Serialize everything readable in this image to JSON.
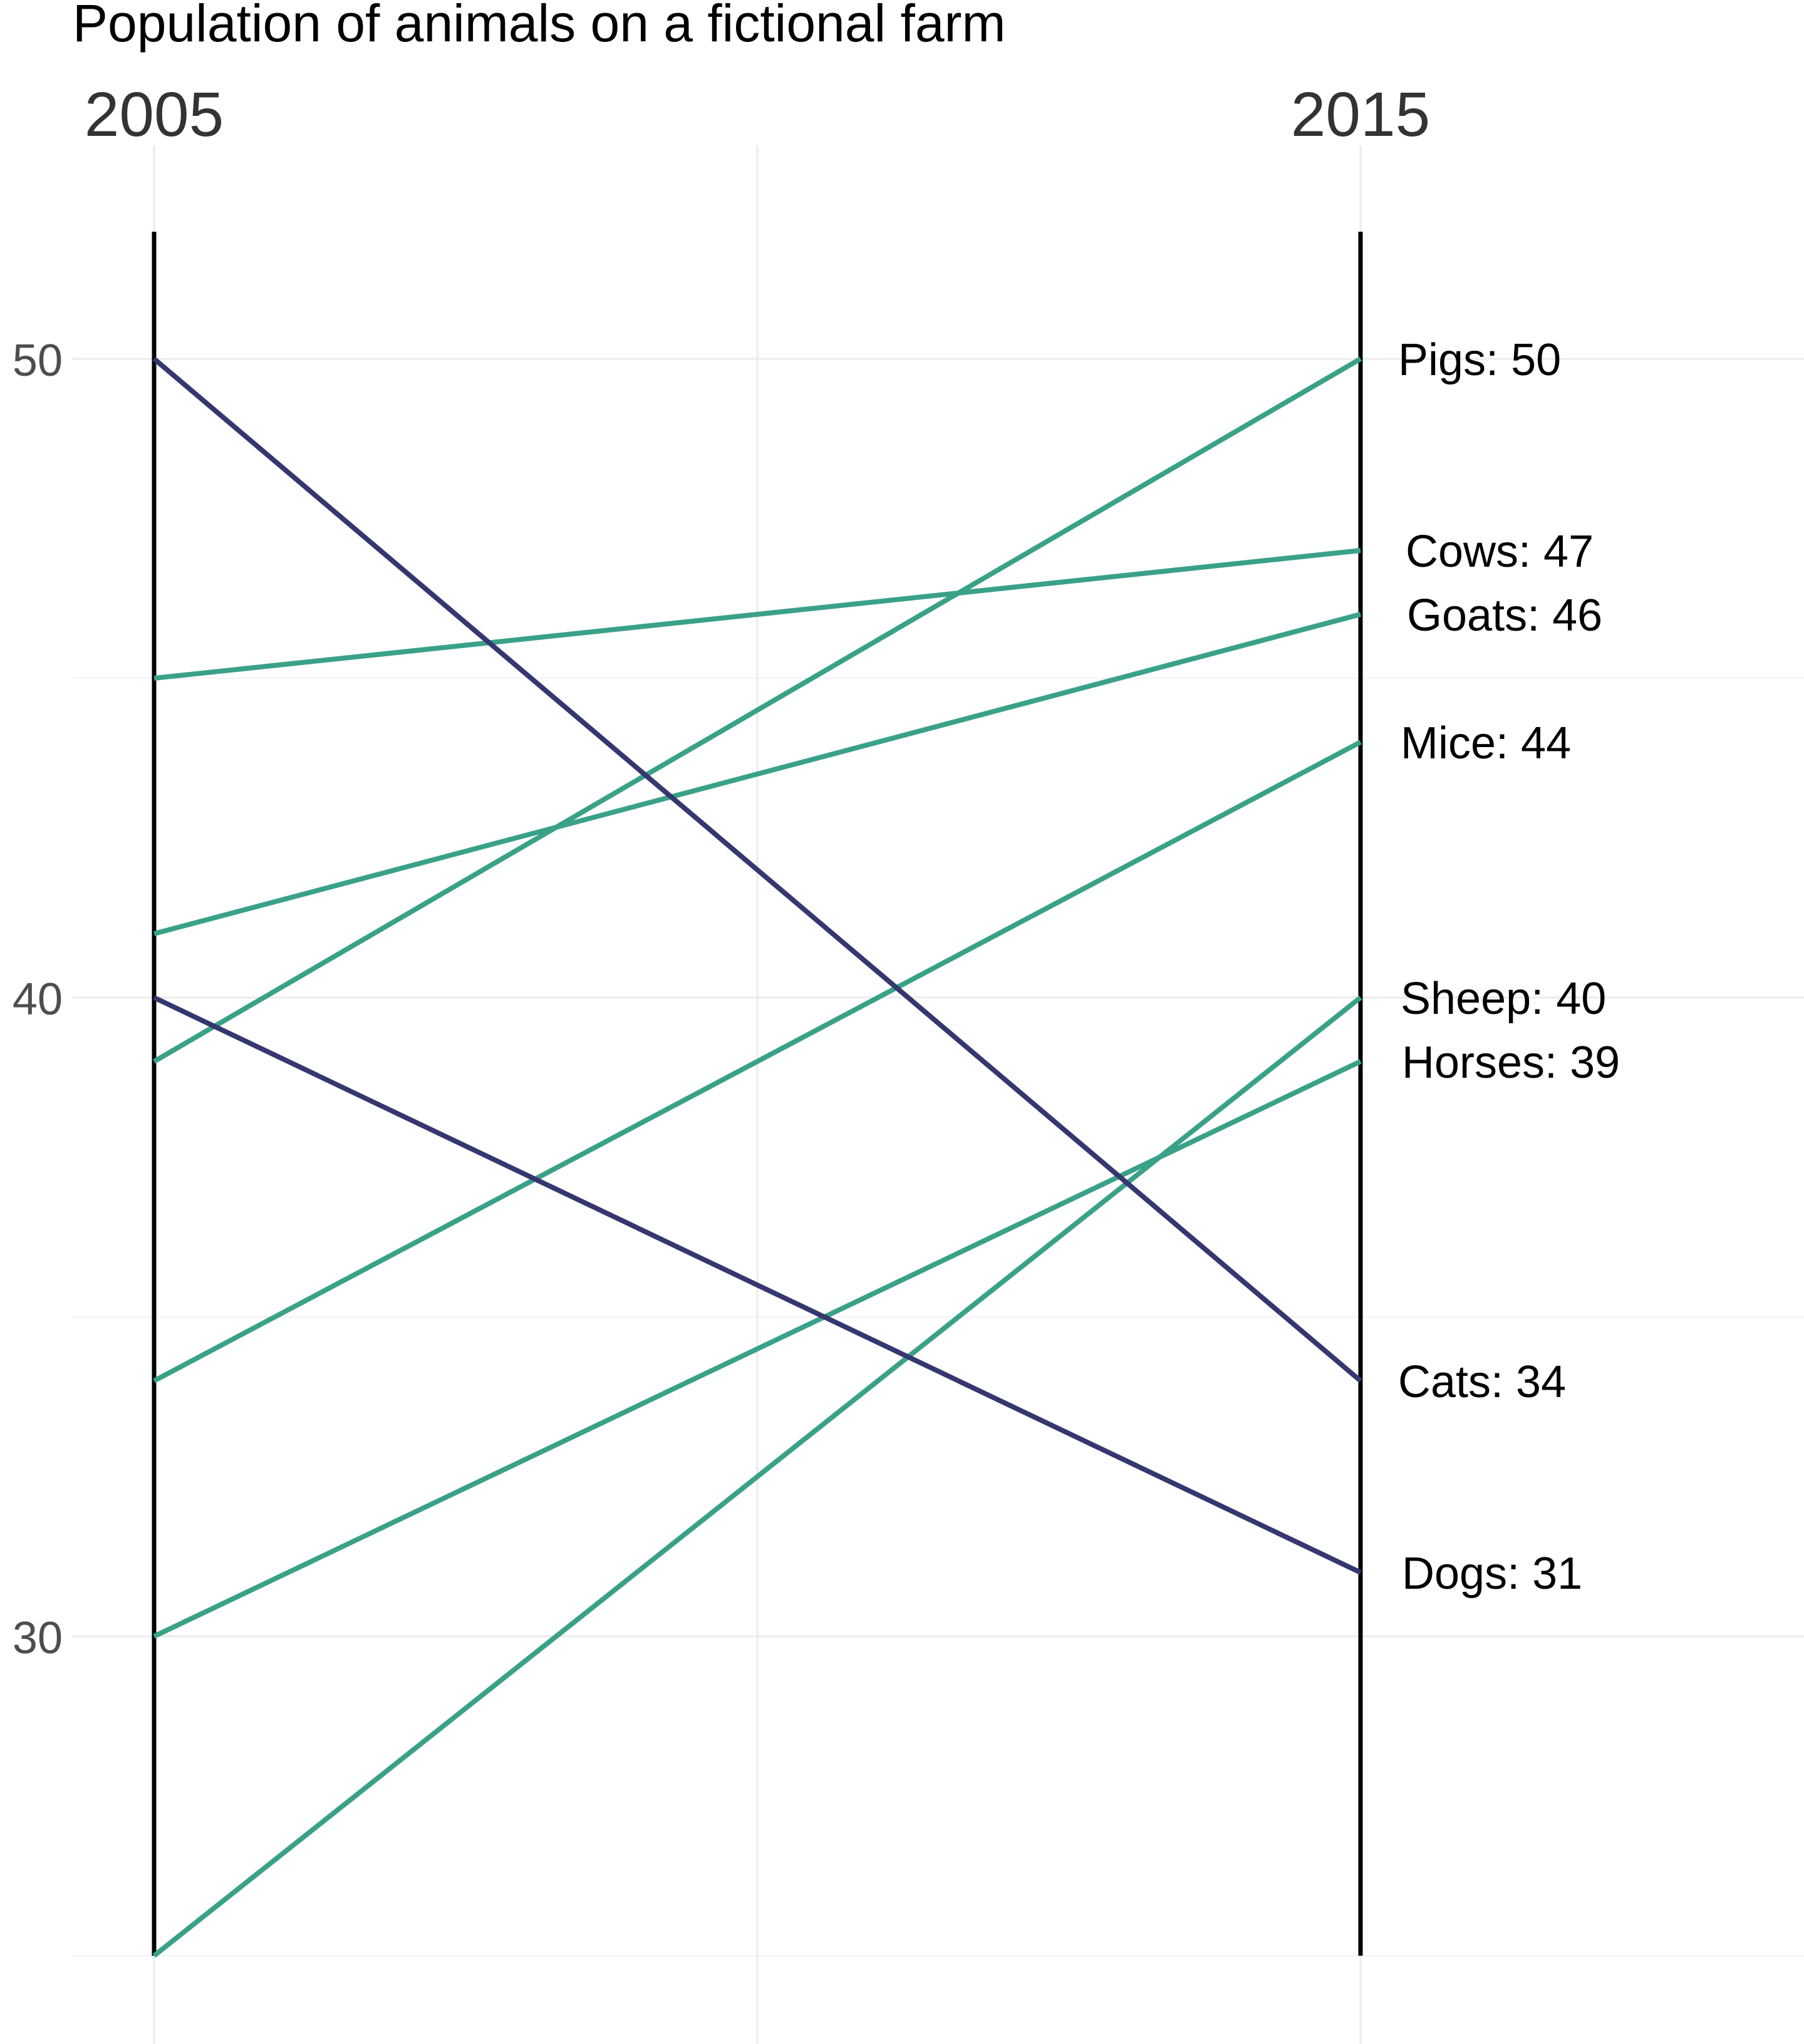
{
  "chart_data": {
    "type": "line",
    "title": "Population of animals on a fictional farm",
    "x": [
      "2005",
      "2015"
    ],
    "xlabel": "",
    "ylabel": "",
    "ylim": [
      25,
      52
    ],
    "y_ticks": [
      30,
      40,
      50
    ],
    "grid": true,
    "colors": {
      "decrease": "#35376f",
      "increase": "#3aa189"
    },
    "series": [
      {
        "name": "Pigs",
        "values": [
          39,
          50
        ],
        "trend": "increase",
        "label": "Pigs: 50"
      },
      {
        "name": "Cows",
        "values": [
          45,
          47
        ],
        "trend": "increase",
        "label": "Cows: 47"
      },
      {
        "name": "Goats",
        "values": [
          41,
          46
        ],
        "trend": "increase",
        "label": "Goats: 46"
      },
      {
        "name": "Mice",
        "values": [
          34,
          44
        ],
        "trend": "increase",
        "label": "Mice: 44"
      },
      {
        "name": "Sheep",
        "values": [
          25,
          40
        ],
        "trend": "increase",
        "label": "Sheep: 40"
      },
      {
        "name": "Horses",
        "values": [
          30,
          39
        ],
        "trend": "increase",
        "label": "Horses: 39"
      },
      {
        "name": "Cats",
        "values": [
          50,
          34
        ],
        "trend": "decrease",
        "label": "Cats: 34"
      },
      {
        "name": "Dogs",
        "values": [
          40,
          31
        ],
        "trend": "decrease",
        "label": "Dogs: 31"
      }
    ]
  }
}
